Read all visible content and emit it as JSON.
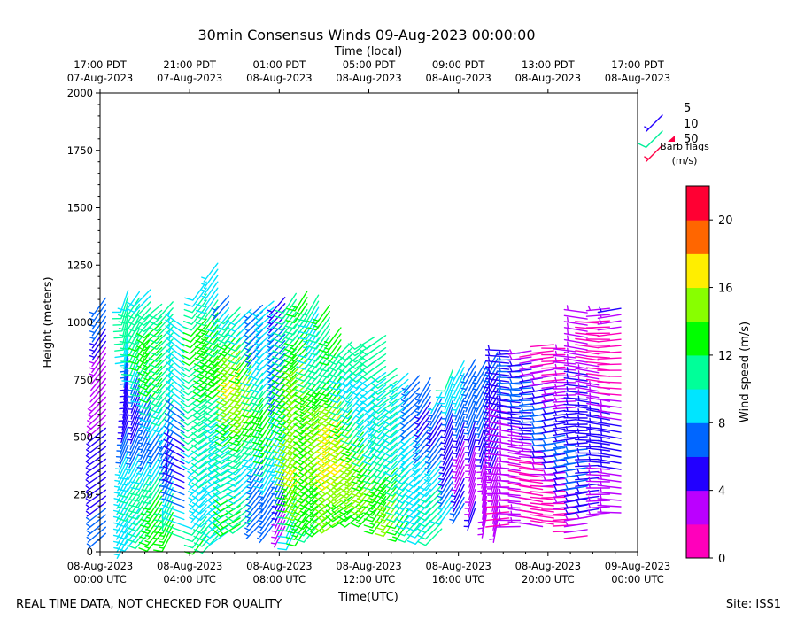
{
  "chart_data": {
    "type": "wind-barb",
    "title": "30min Consensus Winds 09-Aug-2023 00:00:00",
    "top_xlabel": "Time (local)",
    "xlabel": "Time(UTC)",
    "ylabel": "Height (meters)",
    "xlim_hours": [
      0,
      24
    ],
    "ylim": [
      0,
      2000
    ],
    "y_ticks": [
      0,
      250,
      500,
      750,
      1000,
      1250,
      1500,
      1750,
      2000
    ],
    "y_tick_labels": [
      "0",
      "250",
      "500",
      "750",
      "1000",
      "1250",
      "1500",
      "1750",
      "2000"
    ],
    "x_ticks_hours": [
      0,
      4,
      8,
      12,
      16,
      20,
      24
    ],
    "x_tick_labels": [
      [
        "08-Aug-2023",
        "00:00 UTC"
      ],
      [
        "08-Aug-2023",
        "04:00 UTC"
      ],
      [
        "08-Aug-2023",
        "08:00 UTC"
      ],
      [
        "08-Aug-2023",
        "12:00 UTC"
      ],
      [
        "08-Aug-2023",
        "16:00 UTC"
      ],
      [
        "08-Aug-2023",
        "20:00 UTC"
      ],
      [
        "09-Aug-2023",
        "00:00 UTC"
      ]
    ],
    "top_tick_labels": [
      [
        "17:00 PDT",
        "07-Aug-2023"
      ],
      [
        "21:00 PDT",
        "07-Aug-2023"
      ],
      [
        "01:00 PDT",
        "08-Aug-2023"
      ],
      [
        "05:00 PDT",
        "08-Aug-2023"
      ],
      [
        "09:00 PDT",
        "08-Aug-2023"
      ],
      [
        "13:00 PDT",
        "08-Aug-2023"
      ],
      [
        "17:00 PDT",
        "08-Aug-2023"
      ]
    ],
    "barb_legend": {
      "entries": [
        "5",
        "10",
        "50"
      ],
      "title_line1": "Barb flags",
      "title_line2": "(m/s)",
      "colors": [
        "#2200ff",
        "#00ee99",
        "#ff0044"
      ]
    },
    "colorbar": {
      "label": "Wind speed (m/s)",
      "range": [
        0,
        22
      ],
      "tick_values": [
        0,
        4,
        8,
        12,
        16,
        20
      ],
      "tick_labels": [
        "0",
        "4",
        "8",
        "12",
        "16",
        "20"
      ],
      "colors": [
        "#ff00bb",
        "#bb00ff",
        "#2200ff",
        "#0066ff",
        "#00e5ff",
        "#00ff99",
        "#00ff00",
        "#88ff00",
        "#ffee00",
        "#ff6600",
        "#ff0033"
      ]
    },
    "profiles": [
      {
        "t": 0.25,
        "top": 1120,
        "bottom": 80,
        "speed": 4.5,
        "dir": 225
      },
      {
        "t": 1.25,
        "top": 1150,
        "bottom": 60,
        "speed": 7.5,
        "dir": 200
      },
      {
        "t": 1.75,
        "top": 1140,
        "bottom": 80,
        "speed": 8.5,
        "dir": 210
      },
      {
        "t": 2.25,
        "top": 1150,
        "bottom": 90,
        "speed": 9.5,
        "dir": 215
      },
      {
        "t": 2.75,
        "top": 1080,
        "bottom": 80,
        "speed": 11.0,
        "dir": 220
      },
      {
        "t": 3.25,
        "top": 1090,
        "bottom": 90,
        "speed": 10.0,
        "dir": 215
      },
      {
        "t": 3.75,
        "top": 980,
        "bottom": 60,
        "speed": 7.5,
        "dir": 300
      },
      {
        "t": 4.75,
        "top": 1200,
        "bottom": 70,
        "speed": 10.5,
        "dir": 225
      },
      {
        "t": 5.25,
        "top": 1270,
        "bottom": 70,
        "speed": 11.5,
        "dir": 225
      },
      {
        "t": 5.75,
        "top": 1130,
        "bottom": 90,
        "speed": 10.0,
        "dir": 230
      },
      {
        "t": 6.25,
        "top": 1090,
        "bottom": 120,
        "speed": 13.0,
        "dir": 230
      },
      {
        "t": 6.75,
        "top": 1060,
        "bottom": 140,
        "speed": 12.0,
        "dir": 225
      },
      {
        "t": 7.25,
        "top": 1090,
        "bottom": 130,
        "speed": 9.0,
        "dir": 220
      },
      {
        "t": 7.75,
        "top": 1100,
        "bottom": 120,
        "speed": 10.0,
        "dir": 220
      },
      {
        "t": 8.25,
        "top": 1120,
        "bottom": 110,
        "speed": 7.0,
        "dir": 215
      },
      {
        "t": 8.75,
        "top": 1150,
        "bottom": 100,
        "speed": 12.5,
        "dir": 215
      },
      {
        "t": 9.25,
        "top": 1160,
        "bottom": 110,
        "speed": 14.5,
        "dir": 220
      },
      {
        "t": 9.75,
        "top": 1130,
        "bottom": 120,
        "speed": 12.0,
        "dir": 220
      },
      {
        "t": 10.25,
        "top": 1080,
        "bottom": 130,
        "speed": 13.5,
        "dir": 225
      },
      {
        "t": 10.75,
        "top": 1000,
        "bottom": 140,
        "speed": 15.0,
        "dir": 225
      },
      {
        "t": 11.25,
        "top": 940,
        "bottom": 160,
        "speed": 13.0,
        "dir": 230
      },
      {
        "t": 11.75,
        "top": 900,
        "bottom": 170,
        "speed": 12.0,
        "dir": 230
      },
      {
        "t": 12.25,
        "top": 960,
        "bottom": 180,
        "speed": 11.0,
        "dir": 230
      },
      {
        "t": 12.75,
        "top": 960,
        "bottom": 160,
        "speed": 10.5,
        "dir": 225
      },
      {
        "t": 13.25,
        "top": 820,
        "bottom": 150,
        "speed": 12.5,
        "dir": 225
      },
      {
        "t": 13.75,
        "top": 780,
        "bottom": 130,
        "speed": 10.5,
        "dir": 220
      },
      {
        "t": 14.25,
        "top": 780,
        "bottom": 120,
        "speed": 9.0,
        "dir": 220
      },
      {
        "t": 14.75,
        "top": 760,
        "bottom": 110,
        "speed": 8.5,
        "dir": 215
      },
      {
        "t": 15.25,
        "top": 720,
        "bottom": 100,
        "speed": 9.0,
        "dir": 215
      },
      {
        "t": 15.75,
        "top": 800,
        "bottom": 200,
        "speed": 7.5,
        "dir": 210
      },
      {
        "t": 16.25,
        "top": 840,
        "bottom": 210,
        "speed": 6.5,
        "dir": 210
      },
      {
        "t": 16.75,
        "top": 860,
        "bottom": 190,
        "speed": 5.5,
        "dir": 205
      },
      {
        "t": 17.25,
        "top": 860,
        "bottom": 160,
        "speed": 5.0,
        "dir": 200
      },
      {
        "t": 17.75,
        "top": 880,
        "bottom": 140,
        "speed": 4.5,
        "dir": 200
      },
      {
        "t": 18.25,
        "top": 900,
        "bottom": 120,
        "speed": 3.5,
        "dir": 270
      },
      {
        "t": 18.75,
        "top": 890,
        "bottom": 110,
        "speed": 4.0,
        "dir": 270
      },
      {
        "t": 19.25,
        "top": 900,
        "bottom": 120,
        "speed": 3.5,
        "dir": 270
      },
      {
        "t": 19.75,
        "top": 890,
        "bottom": 110,
        "speed": 3.0,
        "dir": 270
      },
      {
        "t": 20.25,
        "top": 920,
        "bottom": 120,
        "speed": 3.5,
        "dir": 270
      },
      {
        "t": 20.75,
        "top": 900,
        "bottom": 130,
        "speed": 3.0,
        "dir": 270
      },
      {
        "t": 21.25,
        "top": 880,
        "bottom": 90,
        "speed": 3.5,
        "dir": 270
      },
      {
        "t": 21.75,
        "top": 1060,
        "bottom": 70,
        "speed": 4.5,
        "dir": 270
      },
      {
        "t": 22.25,
        "top": 1000,
        "bottom": 160,
        "speed": 3.5,
        "dir": 270
      },
      {
        "t": 22.75,
        "top": 1070,
        "bottom": 170,
        "speed": 3.0,
        "dir": 270
      },
      {
        "t": 23.25,
        "top": 1080,
        "bottom": 170,
        "speed": 2.8,
        "dir": 270
      }
    ]
  },
  "footer": {
    "left": "REAL TIME DATA, NOT CHECKED FOR QUALITY",
    "right": "Site: ISS1"
  }
}
